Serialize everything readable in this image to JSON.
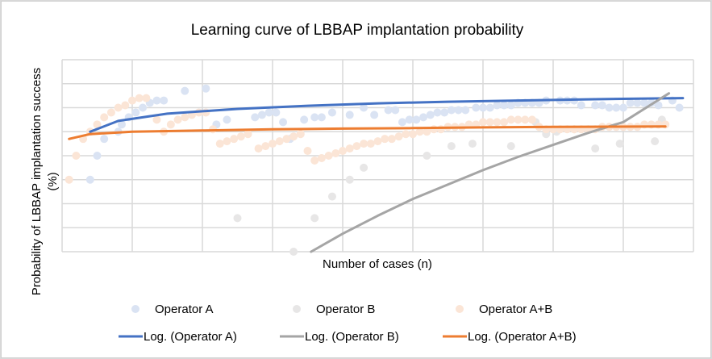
{
  "chart_data": {
    "type": "scatter",
    "title": "Learning curve of LBBAP implantation probability",
    "xlabel": "Number of cases (n)",
    "ylabel_lines": [
      "Probability of LBBAP implantation success",
      "(%)"
    ],
    "xlim": [
      0,
      9
    ],
    "ylim": [
      0,
      8
    ],
    "units_note": "Axis tick labels are not shown; values are in gridline units (x: 9 vertical intervals, y: 8 horizontal intervals).",
    "grid": true,
    "legend_position": "bottom",
    "series": [
      {
        "name": "Operator A",
        "kind": "scatter",
        "color": "#dae3f3",
        "points": [
          [
            0.4,
            3.0
          ],
          [
            0.5,
            4.0
          ],
          [
            0.6,
            4.7
          ],
          [
            0.8,
            5.0
          ],
          [
            0.85,
            5.3
          ],
          [
            0.95,
            5.6
          ],
          [
            1.05,
            5.8
          ],
          [
            1.15,
            6.0
          ],
          [
            1.25,
            6.2
          ],
          [
            1.35,
            6.3
          ],
          [
            1.45,
            6.3
          ],
          [
            1.75,
            6.7
          ],
          [
            2.05,
            6.8
          ],
          [
            2.2,
            5.3
          ],
          [
            2.35,
            5.5
          ],
          [
            2.75,
            5.6
          ],
          [
            2.85,
            5.7
          ],
          [
            2.95,
            5.8
          ],
          [
            3.05,
            5.8
          ],
          [
            3.15,
            5.4
          ],
          [
            3.25,
            4.7
          ],
          [
            3.45,
            5.5
          ],
          [
            3.6,
            5.6
          ],
          [
            3.7,
            5.6
          ],
          [
            3.85,
            5.8
          ],
          [
            4.1,
            5.7
          ],
          [
            4.3,
            6.0
          ],
          [
            4.45,
            5.7
          ],
          [
            4.65,
            5.9
          ],
          [
            4.75,
            5.9
          ],
          [
            4.85,
            5.4
          ],
          [
            4.95,
            5.5
          ],
          [
            5.05,
            5.5
          ],
          [
            5.15,
            5.6
          ],
          [
            5.25,
            5.7
          ],
          [
            5.35,
            5.8
          ],
          [
            5.45,
            5.8
          ],
          [
            5.55,
            5.9
          ],
          [
            5.65,
            5.9
          ],
          [
            5.75,
            5.9
          ],
          [
            5.9,
            6.0
          ],
          [
            6.0,
            6.0
          ],
          [
            6.1,
            6.0
          ],
          [
            6.2,
            6.1
          ],
          [
            6.3,
            6.1
          ],
          [
            6.4,
            6.1
          ],
          [
            6.5,
            6.2
          ],
          [
            6.6,
            6.2
          ],
          [
            6.7,
            6.2
          ],
          [
            6.8,
            6.2
          ],
          [
            6.9,
            6.3
          ],
          [
            7.1,
            6.3
          ],
          [
            7.2,
            6.3
          ],
          [
            7.3,
            6.3
          ],
          [
            7.4,
            6.1
          ],
          [
            7.6,
            6.1
          ],
          [
            7.7,
            6.1
          ],
          [
            7.8,
            6.0
          ],
          [
            7.9,
            6.0
          ],
          [
            8.0,
            6.0
          ],
          [
            8.1,
            6.2
          ],
          [
            8.2,
            6.2
          ],
          [
            8.3,
            6.2
          ],
          [
            8.4,
            6.2
          ],
          [
            8.5,
            6.1
          ],
          [
            8.7,
            6.3
          ],
          [
            8.8,
            6.0
          ]
        ]
      },
      {
        "name": "Operator B",
        "kind": "scatter",
        "color": "#e7e6e6",
        "points": [
          [
            2.5,
            1.4
          ],
          [
            3.3,
            0.0
          ],
          [
            3.6,
            1.4
          ],
          [
            3.85,
            2.3
          ],
          [
            4.1,
            3.0
          ],
          [
            4.3,
            3.5
          ],
          [
            5.2,
            4.0
          ],
          [
            5.55,
            4.4
          ],
          [
            5.85,
            4.5
          ],
          [
            6.4,
            4.4
          ],
          [
            6.75,
            5.4
          ],
          [
            6.9,
            4.9
          ],
          [
            7.05,
            5.0
          ],
          [
            7.3,
            5.1
          ],
          [
            7.6,
            4.3
          ],
          [
            7.95,
            4.5
          ],
          [
            8.45,
            4.6
          ],
          [
            8.55,
            5.5
          ]
        ]
      },
      {
        "name": "Operator A+B",
        "kind": "scatter",
        "color": "#fbe5d6",
        "points": [
          [
            0.1,
            3.0
          ],
          [
            0.2,
            4.0
          ],
          [
            0.3,
            4.7
          ],
          [
            0.4,
            5.0
          ],
          [
            0.5,
            5.3
          ],
          [
            0.6,
            5.6
          ],
          [
            0.7,
            5.8
          ],
          [
            0.8,
            6.0
          ],
          [
            0.9,
            6.1
          ],
          [
            1.0,
            6.3
          ],
          [
            1.1,
            6.4
          ],
          [
            1.2,
            6.4
          ],
          [
            1.35,
            5.5
          ],
          [
            1.45,
            5.0
          ],
          [
            1.55,
            5.3
          ],
          [
            1.65,
            5.5
          ],
          [
            1.75,
            5.6
          ],
          [
            1.85,
            5.7
          ],
          [
            1.95,
            5.8
          ],
          [
            2.05,
            5.8
          ],
          [
            2.15,
            5.1
          ],
          [
            2.25,
            4.5
          ],
          [
            2.35,
            4.6
          ],
          [
            2.45,
            4.7
          ],
          [
            2.55,
            4.8
          ],
          [
            2.65,
            4.9
          ],
          [
            2.8,
            4.3
          ],
          [
            2.9,
            4.4
          ],
          [
            3.0,
            4.5
          ],
          [
            3.1,
            4.6
          ],
          [
            3.2,
            4.7
          ],
          [
            3.3,
            4.8
          ],
          [
            3.4,
            4.9
          ],
          [
            3.5,
            4.2
          ],
          [
            3.6,
            3.8
          ],
          [
            3.7,
            3.9
          ],
          [
            3.8,
            4.0
          ],
          [
            3.9,
            4.1
          ],
          [
            4.0,
            4.2
          ],
          [
            4.1,
            4.3
          ],
          [
            4.2,
            4.4
          ],
          [
            4.3,
            4.5
          ],
          [
            4.4,
            4.5
          ],
          [
            4.5,
            4.6
          ],
          [
            4.6,
            4.7
          ],
          [
            4.7,
            4.7
          ],
          [
            4.8,
            4.8
          ],
          [
            4.9,
            4.9
          ],
          [
            5.0,
            4.9
          ],
          [
            5.1,
            5.0
          ],
          [
            5.2,
            5.0
          ],
          [
            5.3,
            5.1
          ],
          [
            5.4,
            5.1
          ],
          [
            5.5,
            5.2
          ],
          [
            5.6,
            5.2
          ],
          [
            5.7,
            5.2
          ],
          [
            5.8,
            5.3
          ],
          [
            5.9,
            5.3
          ],
          [
            6.0,
            5.4
          ],
          [
            6.1,
            5.4
          ],
          [
            6.2,
            5.4
          ],
          [
            6.3,
            5.4
          ],
          [
            6.4,
            5.5
          ],
          [
            6.5,
            5.5
          ],
          [
            6.6,
            5.5
          ],
          [
            6.7,
            5.5
          ],
          [
            6.8,
            5.2
          ],
          [
            6.9,
            5.1
          ],
          [
            7.0,
            5.1
          ],
          [
            7.1,
            5.1
          ],
          [
            7.2,
            5.1
          ],
          [
            7.3,
            5.1
          ],
          [
            7.4,
            5.1
          ],
          [
            7.5,
            5.1
          ],
          [
            7.6,
            5.1
          ],
          [
            7.7,
            5.2
          ],
          [
            7.8,
            5.2
          ],
          [
            7.9,
            5.2
          ],
          [
            8.0,
            5.2
          ],
          [
            8.1,
            5.2
          ],
          [
            8.2,
            5.2
          ],
          [
            8.3,
            5.3
          ],
          [
            8.4,
            5.3
          ],
          [
            8.5,
            5.3
          ],
          [
            8.6,
            5.3
          ]
        ]
      },
      {
        "name": "Log. (Operator A)",
        "kind": "trendline",
        "color": "#4472c4",
        "x_range": [
          0.4,
          8.85
        ],
        "fit": "logarithmic",
        "samples": [
          [
            0.4,
            5.0
          ],
          [
            0.8,
            5.45
          ],
          [
            1.5,
            5.75
          ],
          [
            2.5,
            5.95
          ],
          [
            3.5,
            6.08
          ],
          [
            4.5,
            6.18
          ],
          [
            5.5,
            6.25
          ],
          [
            6.5,
            6.3
          ],
          [
            7.5,
            6.35
          ],
          [
            8.85,
            6.4
          ]
        ]
      },
      {
        "name": "Log. (Operator B)",
        "kind": "trendline",
        "color": "#a5a5a5",
        "x_range": [
          3.55,
          8.65
        ],
        "fit": "logarithmic",
        "samples": [
          [
            3.55,
            0.0
          ],
          [
            4.0,
            0.75
          ],
          [
            4.5,
            1.5
          ],
          [
            5.0,
            2.2
          ],
          [
            5.5,
            2.8
          ],
          [
            6.0,
            3.4
          ],
          [
            6.5,
            3.95
          ],
          [
            7.0,
            4.45
          ],
          [
            7.5,
            4.95
          ],
          [
            8.0,
            5.4
          ],
          [
            8.65,
            6.6
          ]
        ]
      },
      {
        "name": "Log. (Operator A+B)",
        "kind": "trendline",
        "color": "#ed7d31",
        "x_range": [
          0.1,
          8.6
        ],
        "fit": "logarithmic",
        "samples": [
          [
            0.1,
            4.7
          ],
          [
            0.4,
            4.9
          ],
          [
            1.0,
            5.0
          ],
          [
            2.0,
            5.05
          ],
          [
            3.0,
            5.1
          ],
          [
            4.0,
            5.13
          ],
          [
            5.0,
            5.15
          ],
          [
            6.0,
            5.18
          ],
          [
            7.0,
            5.2
          ],
          [
            8.6,
            5.22
          ]
        ]
      }
    ],
    "legend": [
      {
        "label": "Operator A",
        "marker": "dot",
        "color": "#dae3f3"
      },
      {
        "label": "Operator B",
        "marker": "dot",
        "color": "#e7e6e6"
      },
      {
        "label": "Operator A+B",
        "marker": "dot",
        "color": "#fbe5d6"
      },
      {
        "label": "Log. (Operator A)",
        "marker": "line",
        "color": "#4472c4"
      },
      {
        "label": "Log. (Operator B)",
        "marker": "line",
        "color": "#a5a5a5"
      },
      {
        "label": "Log. (Operator A+B)",
        "marker": "line",
        "color": "#ed7d31"
      }
    ]
  }
}
